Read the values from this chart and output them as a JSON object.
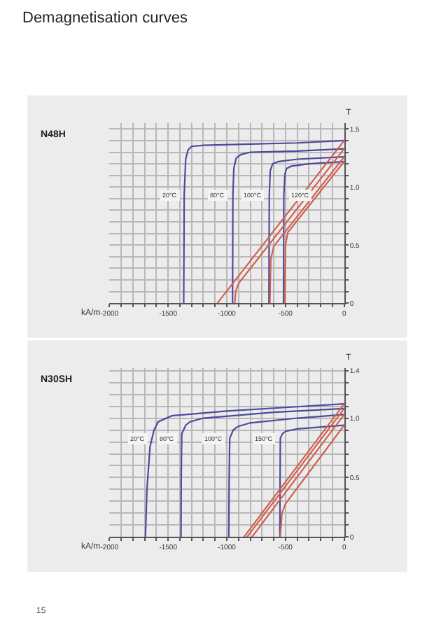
{
  "chart_data": [
    {
      "type": "line",
      "title": "N48H",
      "xlabel": "kA/m",
      "ylabel": "T",
      "xlim": [
        -2000,
        0
      ],
      "ylim": [
        0,
        1.55
      ],
      "grid": true,
      "marker": "none",
      "line_style": "solid",
      "xticks": [
        -2000,
        {
          "value": -1900,
          "label": null
        },
        {
          "value": -1800,
          "label": null
        },
        {
          "value": -1700,
          "label": null
        },
        {
          "value": -1600,
          "label": null
        },
        -1500,
        {
          "value": -1400,
          "label": null
        },
        {
          "value": -1300,
          "label": null
        },
        {
          "value": -1200,
          "label": null
        },
        {
          "value": -1100,
          "label": null
        },
        -1000,
        {
          "value": -900,
          "label": null
        },
        {
          "value": -800,
          "label": null
        },
        {
          "value": -700,
          "label": null
        },
        {
          "value": -600,
          "label": null
        },
        -500,
        {
          "value": -400,
          "label": null
        },
        {
          "value": -300,
          "label": null
        },
        {
          "value": -200,
          "label": null
        },
        {
          "value": -100,
          "label": null
        },
        0
      ],
      "yticks": [
        0,
        {
          "value": 0.1,
          "label": null
        },
        {
          "value": 0.2,
          "label": null
        },
        {
          "value": 0.3,
          "label": null
        },
        {
          "value": 0.4,
          "label": null
        },
        0.5,
        {
          "value": 0.6,
          "label": null
        },
        {
          "value": 0.7,
          "label": null
        },
        {
          "value": 0.8,
          "label": null
        },
        {
          "value": 0.9,
          "label": null
        },
        {
          "value": 1,
          "label": "1.0"
        },
        {
          "value": 1.1,
          "label": null
        },
        {
          "value": 1.2,
          "label": null
        },
        {
          "value": 1.3,
          "label": null
        },
        {
          "value": 1.4,
          "label": null
        },
        1.5
      ],
      "annotations": [
        "Demagnetisation curves",
        {
          "text": "20°C",
          "x": -1363,
          "y": 0.93
        },
        {
          "text": "80°C",
          "x": -948,
          "y": 0.93
        },
        {
          "text": "100°C",
          "x": -638,
          "y": 0.93
        },
        {
          "text": "120°C",
          "x": -514,
          "y": 0.93
        }
      ],
      "series": [
        {
          "color": "#4b4b9b",
          "x": [
            -1367,
            -1363,
            -1350,
            -1330,
            -1300,
            -1200,
            -800,
            -400,
            0
          ],
          "values": [
            0,
            0.93,
            1.24,
            1.32,
            1.35,
            1.36,
            1.37,
            1.38,
            1.4
          ]
        },
        {
          "color": "#4b4b9b",
          "x": [
            -951,
            -948,
            -940,
            -920,
            -880,
            -800,
            -400,
            0
          ],
          "values": [
            0,
            0.93,
            1.16,
            1.25,
            1.28,
            1.3,
            1.31,
            1.33
          ]
        },
        {
          "color": "#4b4b9b",
          "x": [
            -641,
            -638,
            -630,
            -610,
            -560,
            -400,
            0
          ],
          "values": [
            0,
            0.93,
            1.14,
            1.2,
            1.22,
            1.24,
            1.26
          ]
        },
        {
          "color": "#4b4b9b",
          "x": [
            -517,
            -514,
            -505,
            -490,
            -450,
            -300,
            0
          ],
          "values": [
            0,
            0.93,
            1.11,
            1.16,
            1.18,
            1.2,
            1.22
          ]
        },
        {
          "color": "#d0604f",
          "x": [
            -1080,
            0
          ],
          "values": [
            0,
            1.4
          ]
        },
        {
          "color": "#d0604f",
          "x": [
            -932,
            -925,
            -900,
            0
          ],
          "values": [
            0,
            0.1,
            0.17,
            1.33
          ]
        },
        {
          "color": "#d0604f",
          "x": [
            -633,
            -625,
            -600,
            0
          ],
          "values": [
            0,
            0.38,
            0.49,
            1.26
          ]
        },
        {
          "color": "#d0604f",
          "x": [
            -508,
            -500,
            -480,
            0
          ],
          "values": [
            0,
            0.5,
            0.61,
            1.22
          ]
        }
      ]
    },
    {
      "type": "line",
      "title": "N30SH",
      "xlabel": "kA/m",
      "ylabel": "T",
      "xlim": [
        -2000,
        0
      ],
      "ylim": [
        0,
        1.42
      ],
      "grid": true,
      "marker": "none",
      "line_style": "solid",
      "xticks": [
        -2000,
        {
          "value": -1900,
          "label": null
        },
        {
          "value": -1800,
          "label": null
        },
        {
          "value": -1700,
          "label": null
        },
        {
          "value": -1600,
          "label": null
        },
        -1500,
        {
          "value": -1400,
          "label": null
        },
        {
          "value": -1300,
          "label": null
        },
        {
          "value": -1200,
          "label": null
        },
        {
          "value": -1100,
          "label": null
        },
        -1000,
        {
          "value": -900,
          "label": null
        },
        {
          "value": -800,
          "label": null
        },
        {
          "value": -700,
          "label": null
        },
        {
          "value": -600,
          "label": null
        },
        -500,
        {
          "value": -400,
          "label": null
        },
        {
          "value": -300,
          "label": null
        },
        {
          "value": -200,
          "label": null
        },
        {
          "value": -100,
          "label": null
        },
        0
      ],
      "yticks": [
        0,
        {
          "value": 0.1,
          "label": null
        },
        {
          "value": 0.2,
          "label": null
        },
        {
          "value": 0.3,
          "label": null
        },
        {
          "value": 0.4,
          "label": null
        },
        0.5,
        {
          "value": 0.6,
          "label": null
        },
        {
          "value": 0.7,
          "label": null
        },
        {
          "value": 0.8,
          "label": null
        },
        {
          "value": 0.9,
          "label": null
        },
        {
          "value": 1,
          "label": "1.0"
        },
        {
          "value": 1.1,
          "label": null
        },
        {
          "value": 1.2,
          "label": null
        },
        {
          "value": 1.3,
          "label": null
        },
        1.4
      ],
      "annotations": [
        {
          "text": "20°C",
          "x": -1637,
          "y": 0.83
        },
        {
          "text": "80°C",
          "x": -1384,
          "y": 0.83
        },
        {
          "text": "100°C",
          "x": -975,
          "y": 0.83
        },
        {
          "text": "150°C",
          "x": -544,
          "y": 0.83
        },
        "15"
      ],
      "series": [
        {
          "color": "#4b4b9b",
          "x": [
            -1693,
            -1680,
            -1654,
            -1637,
            -1620,
            -1584,
            -1468,
            -1000,
            -500,
            0
          ],
          "values": [
            0,
            0.4,
            0.76,
            0.83,
            0.9,
            0.97,
            1.02,
            1.06,
            1.09,
            1.12
          ]
        },
        {
          "color": "#4b4b9b",
          "x": [
            -1390,
            -1388,
            -1384,
            -1383,
            -1350,
            -1313,
            -1200,
            -600,
            0
          ],
          "values": [
            0,
            0.5,
            0.83,
            0.87,
            0.94,
            0.97,
            1.0,
            1.05,
            1.08
          ]
        },
        {
          "color": "#4b4b9b",
          "x": [
            -983,
            -980,
            -975,
            -945,
            -905,
            -800,
            -400,
            0
          ],
          "values": [
            0,
            0.5,
            0.83,
            0.9,
            0.93,
            0.96,
            1.0,
            1.03
          ]
        },
        {
          "color": "#4b4b9b",
          "x": [
            -548,
            -546,
            -544,
            -525,
            -497,
            -400,
            0
          ],
          "values": [
            0,
            0.5,
            0.83,
            0.87,
            0.89,
            0.91,
            0.94
          ]
        },
        {
          "color": "#d0604f",
          "x": [
            -854,
            0
          ],
          "values": [
            0,
            1.12
          ]
        },
        {
          "color": "#d0604f",
          "x": [
            -828,
            0
          ],
          "values": [
            0,
            1.08
          ]
        },
        {
          "color": "#d0604f",
          "x": [
            -786,
            0
          ],
          "values": [
            0,
            1.03
          ]
        },
        {
          "color": "#d0604f",
          "x": [
            -545,
            -530,
            -500,
            0
          ],
          "values": [
            0,
            0.2,
            0.28,
            0.94
          ]
        }
      ]
    }
  ]
}
